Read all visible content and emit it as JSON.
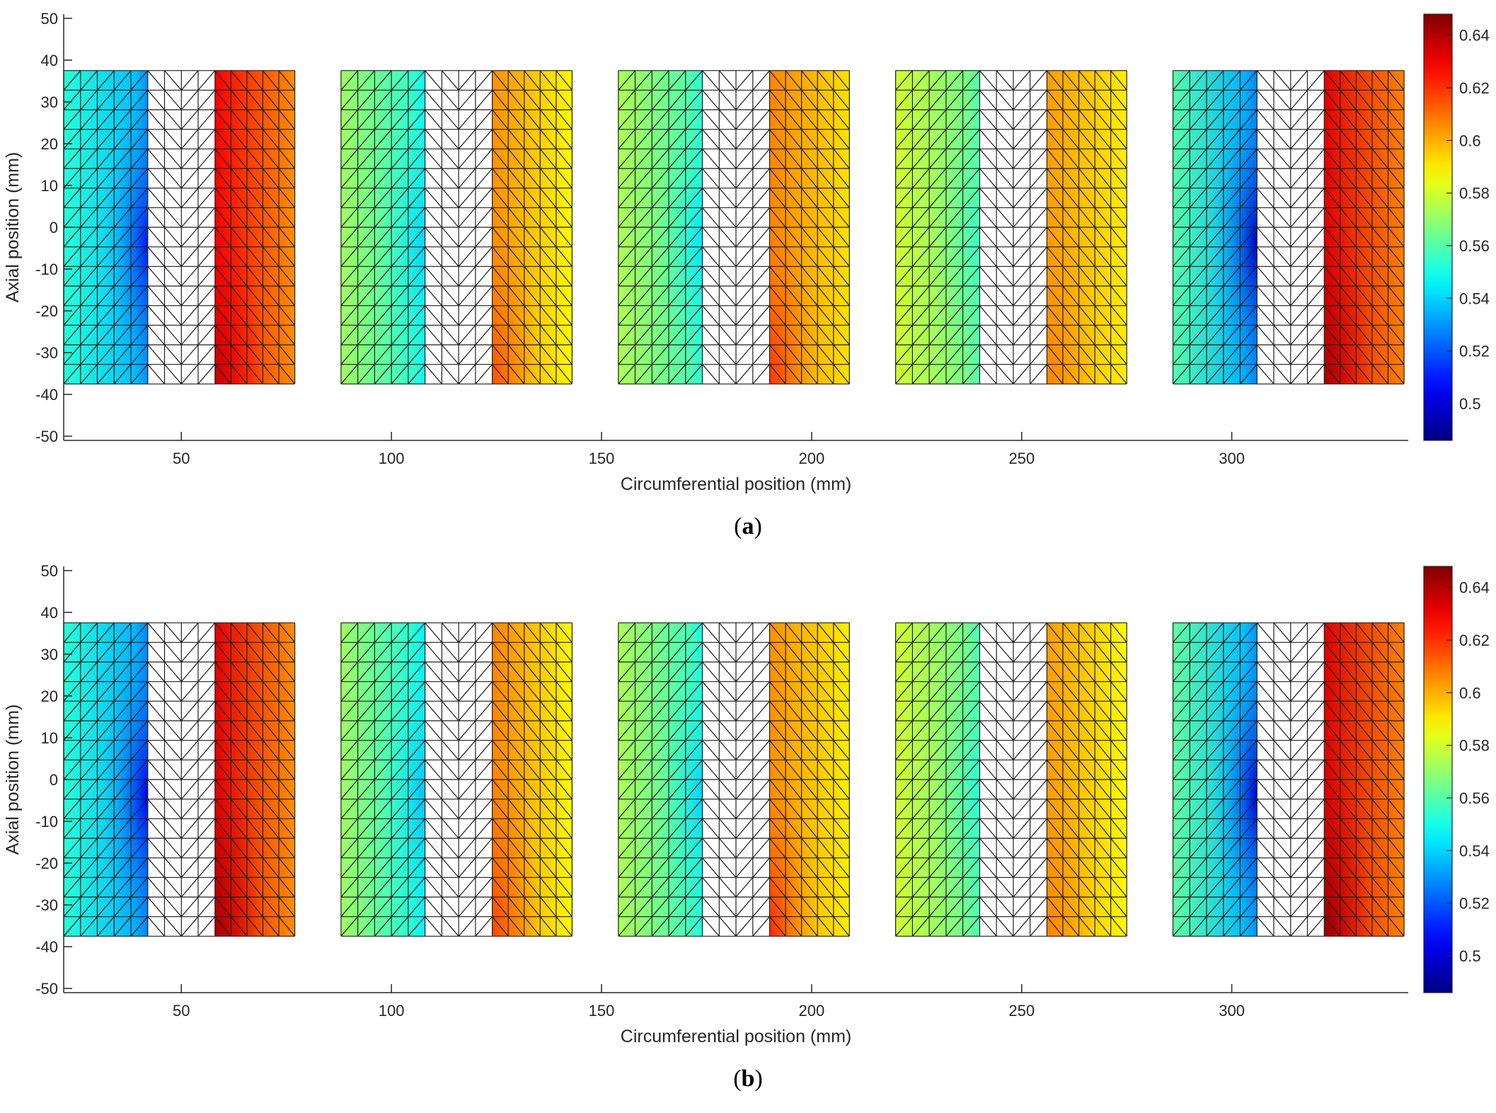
{
  "chart_data": [
    {
      "type": "heatmap",
      "panel": "a",
      "caption_letter": "a",
      "xlabel": "Circumferential position (mm)",
      "ylabel": "Axial position (mm)",
      "xlim": [
        22,
        342
      ],
      "ylim": [
        -51,
        51
      ],
      "xticks": [
        50,
        100,
        150,
        200,
        250,
        300
      ],
      "yticks": [
        50,
        40,
        30,
        20,
        10,
        0,
        -10,
        -20,
        -30,
        -40,
        -50
      ],
      "colorbar": {
        "min": 0.486,
        "max": 0.648,
        "ticks": [
          0.5,
          0.52,
          0.54,
          0.56,
          0.58,
          0.6,
          0.62,
          0.64
        ],
        "colormap": "jet"
      },
      "y_range": [
        -37.5,
        37.5
      ],
      "segments": [
        {
          "name": "segment-1",
          "left_strip": [
            22,
            42
          ],
          "gap": [
            42,
            58
          ],
          "right_strip": [
            58,
            77
          ],
          "left_values": {
            "outer": 0.553,
            "inner": 0.537,
            "inner_min": 0.51
          },
          "right_values": {
            "inner": 0.628,
            "outer": 0.605,
            "inner_max": 0.637
          }
        },
        {
          "name": "segment-2",
          "left_strip": [
            88,
            108
          ],
          "gap": [
            108,
            124
          ],
          "right_strip": [
            124,
            143
          ],
          "left_values": {
            "outer": 0.572,
            "inner": 0.555,
            "inner_min": 0.54
          },
          "right_values": {
            "inner": 0.605,
            "outer": 0.588,
            "inner_max": 0.615
          }
        },
        {
          "name": "segment-3",
          "left_strip": [
            154,
            174
          ],
          "gap": [
            174,
            190
          ],
          "right_strip": [
            190,
            209
          ],
          "left_values": {
            "outer": 0.574,
            "inner": 0.56,
            "inner_min": 0.543
          },
          "right_values": {
            "inner": 0.607,
            "outer": 0.592,
            "inner_max": 0.62
          }
        },
        {
          "name": "segment-4",
          "left_strip": [
            220,
            240
          ],
          "gap": [
            240,
            256
          ],
          "right_strip": [
            256,
            275
          ],
          "left_values": {
            "outer": 0.58,
            "inner": 0.566,
            "inner_min": 0.556
          },
          "right_values": {
            "inner": 0.603,
            "outer": 0.59,
            "inner_max": 0.607
          }
        },
        {
          "name": "segment-5",
          "left_strip": [
            286,
            306
          ],
          "gap": [
            306,
            322
          ],
          "right_strip": [
            322,
            341
          ],
          "left_values": {
            "outer": 0.56,
            "inner": 0.535,
            "inner_min": 0.498
          },
          "right_values": {
            "inner": 0.632,
            "outer": 0.607,
            "inner_max": 0.642
          }
        }
      ]
    },
    {
      "type": "heatmap",
      "panel": "b",
      "caption_letter": "b",
      "xlabel": "Circumferential position (mm)",
      "ylabel": "Axial position (mm)",
      "xlim": [
        22,
        342
      ],
      "ylim": [
        -51,
        51
      ],
      "xticks": [
        50,
        100,
        150,
        200,
        250,
        300
      ],
      "yticks": [
        50,
        40,
        30,
        20,
        10,
        0,
        -10,
        -20,
        -30,
        -40,
        -50
      ],
      "colorbar": {
        "min": 0.486,
        "max": 0.648,
        "ticks": [
          0.5,
          0.52,
          0.54,
          0.56,
          0.58,
          0.6,
          0.62,
          0.64
        ],
        "colormap": "jet"
      },
      "y_range": [
        -37.5,
        37.5
      ],
      "segments": [
        {
          "name": "segment-1",
          "left_strip": [
            22,
            42
          ],
          "gap": [
            42,
            58
          ],
          "right_strip": [
            58,
            77
          ],
          "left_values": {
            "outer": 0.553,
            "inner": 0.535,
            "inner_min": 0.505
          },
          "right_values": {
            "inner": 0.632,
            "outer": 0.605,
            "inner_max": 0.642
          }
        },
        {
          "name": "segment-2",
          "left_strip": [
            88,
            108
          ],
          "gap": [
            108,
            124
          ],
          "right_strip": [
            124,
            143
          ],
          "left_values": {
            "outer": 0.572,
            "inner": 0.553,
            "inner_min": 0.537
          },
          "right_values": {
            "inner": 0.607,
            "outer": 0.588,
            "inner_max": 0.617
          }
        },
        {
          "name": "segment-3",
          "left_strip": [
            154,
            174
          ],
          "gap": [
            174,
            190
          ],
          "right_strip": [
            190,
            209
          ],
          "left_values": {
            "outer": 0.574,
            "inner": 0.558,
            "inner_min": 0.54
          },
          "right_values": {
            "inner": 0.605,
            "outer": 0.59,
            "inner_max": 0.622
          }
        },
        {
          "name": "segment-4",
          "left_strip": [
            220,
            240
          ],
          "gap": [
            240,
            256
          ],
          "right_strip": [
            256,
            275
          ],
          "left_values": {
            "outer": 0.58,
            "inner": 0.565,
            "inner_min": 0.553
          },
          "right_values": {
            "inner": 0.603,
            "outer": 0.588,
            "inner_max": 0.607
          }
        },
        {
          "name": "segment-5",
          "left_strip": [
            286,
            306
          ],
          "gap": [
            306,
            322
          ],
          "right_strip": [
            322,
            341
          ],
          "left_values": {
            "outer": 0.562,
            "inner": 0.537,
            "inner_min": 0.5
          },
          "right_values": {
            "inner": 0.633,
            "outer": 0.607,
            "inner_max": 0.645
          }
        }
      ]
    }
  ]
}
